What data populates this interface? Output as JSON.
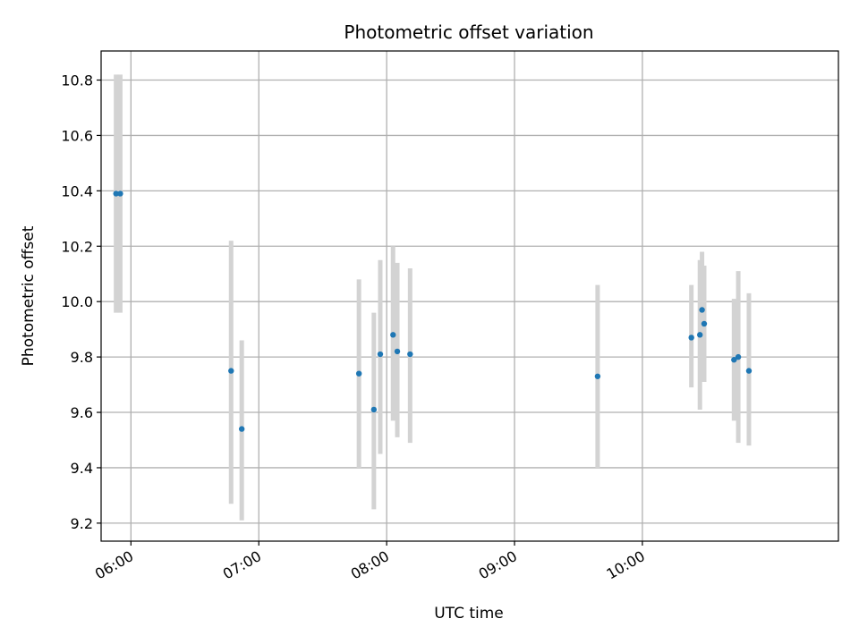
{
  "chart_data": {
    "type": "scatter",
    "title": "Photometric offset variation",
    "xlabel": "UTC time",
    "ylabel": "Photometric offset",
    "xlim": [
      "05:46",
      "11:32"
    ],
    "ylim": [
      9.135,
      10.905
    ],
    "xticks": [
      "06:00",
      "07:00",
      "08:00",
      "09:00",
      "10:00"
    ],
    "yticks": [
      9.2,
      9.4,
      9.6,
      9.8,
      10.0,
      10.2,
      10.4,
      10.6,
      10.8
    ],
    "grid": true,
    "colors": {
      "points": "#1f77b4",
      "errorbars": "#d3d3d3",
      "grid": "#b0b0b0"
    },
    "points": [
      {
        "x": "05:53",
        "y": 10.39,
        "ylow": 9.96,
        "yhigh": 10.82
      },
      {
        "x": "05:55",
        "y": 10.39,
        "ylow": 9.96,
        "yhigh": 10.82
      },
      {
        "x": "06:47",
        "y": 9.75,
        "ylow": 9.27,
        "yhigh": 10.22
      },
      {
        "x": "06:52",
        "y": 9.54,
        "ylow": 9.21,
        "yhigh": 9.86
      },
      {
        "x": "07:47",
        "y": 9.74,
        "ylow": 9.4,
        "yhigh": 10.08
      },
      {
        "x": "07:54",
        "y": 9.61,
        "ylow": 9.25,
        "yhigh": 9.96
      },
      {
        "x": "07:57",
        "y": 9.81,
        "ylow": 9.45,
        "yhigh": 10.15
      },
      {
        "x": "08:03",
        "y": 9.88,
        "ylow": 9.57,
        "yhigh": 10.2
      },
      {
        "x": "08:05",
        "y": 9.82,
        "ylow": 9.51,
        "yhigh": 10.14
      },
      {
        "x": "08:11",
        "y": 9.81,
        "ylow": 9.49,
        "yhigh": 10.12
      },
      {
        "x": "09:39",
        "y": 9.73,
        "ylow": 9.4,
        "yhigh": 10.06
      },
      {
        "x": "10:23",
        "y": 9.87,
        "ylow": 9.69,
        "yhigh": 10.06
      },
      {
        "x": "10:27",
        "y": 9.88,
        "ylow": 9.61,
        "yhigh": 10.15
      },
      {
        "x": "10:28",
        "y": 9.97,
        "ylow": 9.77,
        "yhigh": 10.18
      },
      {
        "x": "10:29",
        "y": 9.92,
        "ylow": 9.71,
        "yhigh": 10.13
      },
      {
        "x": "10:43",
        "y": 9.79,
        "ylow": 9.57,
        "yhigh": 10.01
      },
      {
        "x": "10:45",
        "y": 9.8,
        "ylow": 9.49,
        "yhigh": 10.11
      },
      {
        "x": "10:50",
        "y": 9.75,
        "ylow": 9.48,
        "yhigh": 10.03
      }
    ]
  }
}
